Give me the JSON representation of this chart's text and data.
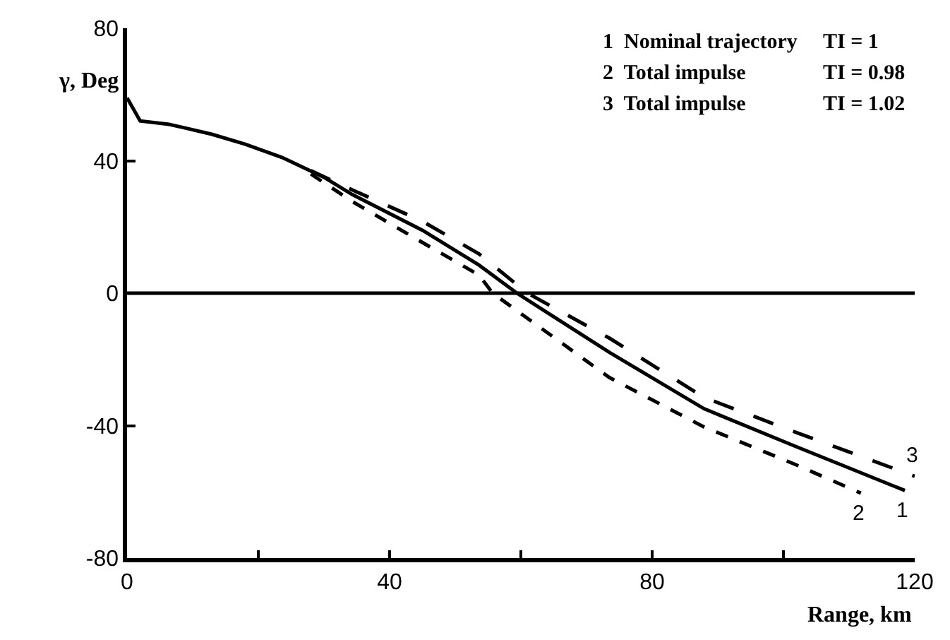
{
  "chart_data": {
    "type": "line",
    "xlabel": "Range, km",
    "ylabel": "γ, Deg",
    "xlim": [
      0,
      120
    ],
    "ylim": [
      -80,
      80
    ],
    "xticks": [
      0,
      {
        "value": 20,
        "label": null
      },
      40,
      {
        "value": 60,
        "label": null
      },
      80,
      {
        "value": 100,
        "label": null
      },
      120
    ],
    "yticks": [
      -80,
      -40,
      0,
      40,
      80
    ],
    "legend": false,
    "marker": "none",
    "ref_lines": [
      {
        "axis": "y",
        "value": 0,
        "label": null,
        "color": "#000000"
      }
    ],
    "annotations": [
      "1  Nominal trajectory",
      "TI = 1",
      "2  Total impulse",
      "TI = 0.98",
      "3  Total impulse",
      "TI = 1.02"
    ],
    "series": [
      {
        "name": "1",
        "color": "#000000",
        "line_style": "solid",
        "x": [
          0,
          2,
          6.4,
          12.9,
          18,
          23.6,
          30,
          34.3,
          45,
          53.6,
          59.4,
          73.5,
          87.9,
          102,
          109,
          118.5
        ],
        "values": [
          59,
          52,
          51,
          48,
          45,
          41,
          35,
          29.8,
          19,
          8.5,
          0,
          -17.9,
          -34.9,
          -46.4,
          -52,
          -59.6
        ]
      },
      {
        "name": "2",
        "color": "#000000",
        "line_style": "dotted",
        "x": [
          28,
          34.3,
          45,
          53.6,
          55.7,
          73.5,
          87.9,
          102,
          111.8
        ],
        "values": [
          36,
          27.7,
          15.3,
          5.5,
          0,
          -25.5,
          -40.4,
          -51.9,
          -60.4
        ]
      },
      {
        "name": "3",
        "color": "#000000",
        "line_style": "dashed",
        "x": [
          28,
          34.3,
          45,
          53.6,
          61,
          73.5,
          87.9,
          102,
          120
        ],
        "values": [
          37,
          31.2,
          21.7,
          11.9,
          0,
          -13.6,
          -31.5,
          -42.1,
          -55.3
        ]
      }
    ]
  }
}
